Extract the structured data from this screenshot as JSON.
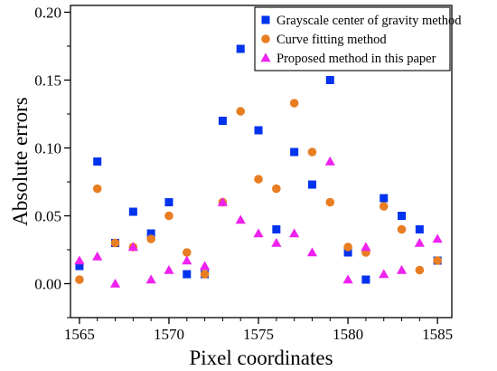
{
  "chart_data": {
    "type": "scatter",
    "title": "",
    "xlabel": "Pixel coordinates",
    "ylabel": "Absolute errors",
    "xlim": [
      1564.5,
      1585.8
    ],
    "ylim": [
      -0.025,
      0.205
    ],
    "xticks": [
      1565,
      1570,
      1575,
      1580,
      1585
    ],
    "yticks": [
      0.0,
      0.05,
      0.1,
      0.15,
      0.2
    ],
    "ytick_labels": [
      "0.00",
      "0.05",
      "0.10",
      "0.15",
      "0.20"
    ],
    "grid": false,
    "legend_position": "top-right",
    "series": [
      {
        "name": "Grayscale center of gravity method",
        "marker": "square",
        "color": "#0033ee",
        "x": [
          1565,
          1566,
          1567,
          1568,
          1569,
          1570,
          1571,
          1572,
          1573,
          1574,
          1575,
          1576,
          1577,
          1578,
          1579,
          1580,
          1581,
          1582,
          1583,
          1584,
          1585
        ],
        "y": [
          0.013,
          0.09,
          0.03,
          0.053,
          0.037,
          0.06,
          0.007,
          0.007,
          0.12,
          0.173,
          0.113,
          0.04,
          0.097,
          0.073,
          0.15,
          0.023,
          0.003,
          0.063,
          0.05,
          0.04,
          0.017
        ]
      },
      {
        "name": "Curve fitting method",
        "marker": "circle",
        "color": "#e87d22",
        "x": [
          1565,
          1566,
          1567,
          1568,
          1569,
          1570,
          1571,
          1572,
          1573,
          1574,
          1575,
          1576,
          1577,
          1578,
          1579,
          1580,
          1581,
          1582,
          1583,
          1584,
          1585
        ],
        "y": [
          0.003,
          0.07,
          0.03,
          0.027,
          0.033,
          0.05,
          0.023,
          0.007,
          0.06,
          0.127,
          0.077,
          0.07,
          0.133,
          0.097,
          0.06,
          0.027,
          0.023,
          0.057,
          0.04,
          0.01,
          0.017
        ]
      },
      {
        "name": "Proposed method in this paper",
        "marker": "triangle",
        "color": "#ee22ee",
        "x": [
          1565,
          1566,
          1567,
          1568,
          1569,
          1570,
          1571,
          1572,
          1573,
          1574,
          1575,
          1576,
          1577,
          1578,
          1579,
          1580,
          1581,
          1582,
          1583,
          1584,
          1585
        ],
        "y": [
          0.017,
          0.02,
          0.0,
          0.027,
          0.003,
          0.01,
          0.017,
          0.013,
          0.06,
          0.047,
          0.037,
          0.03,
          0.037,
          0.023,
          0.09,
          0.003,
          0.027,
          0.007,
          0.01,
          0.03,
          0.033
        ]
      }
    ]
  }
}
